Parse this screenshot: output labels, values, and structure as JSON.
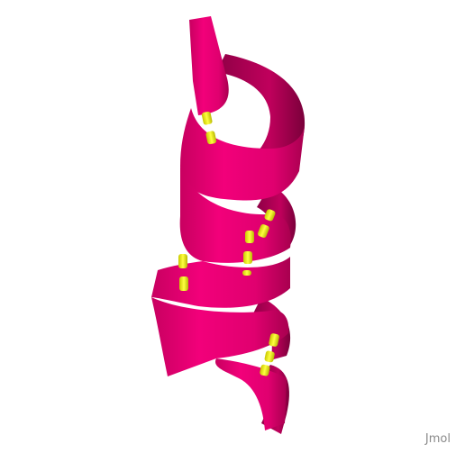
{
  "viewer": {
    "watermark": "Jmol",
    "background_color": "#ffffff",
    "helix_color": "#e8006f",
    "helix_dark_color": "#9a0049",
    "hbond_color": "#e8e800",
    "representation": "cartoon-helix",
    "hbond_count": 6
  }
}
